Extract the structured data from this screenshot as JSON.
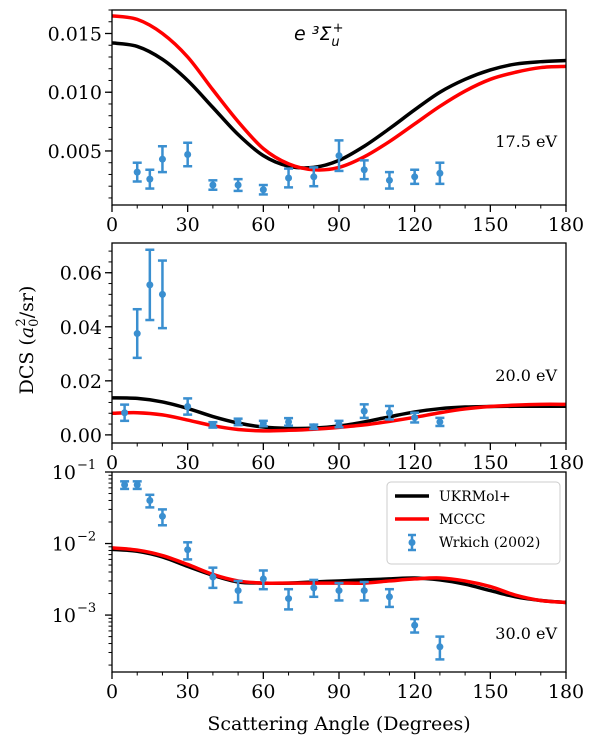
{
  "figure": {
    "ylabel": "DCS (",
    "ylabel_math": "a",
    "ylabel_sub": "0",
    "ylabel_sup": "2",
    "ylabel_tail": "/sr)",
    "xlabel": "Scattering Angle (Degrees)",
    "state_title": "e ³Σ",
    "state_title_sub": "u",
    "state_title_sup": "+"
  },
  "legend": {
    "items": [
      {
        "label": "UKRMol+",
        "color": "#000000",
        "kind": "line"
      },
      {
        "label": "MCCC",
        "color": "#ff0000",
        "kind": "line"
      },
      {
        "label": "Wrkich (2002)",
        "color": "#3a8fd0",
        "kind": "errorbar"
      }
    ]
  },
  "chart_data": [
    {
      "type": "line",
      "energy_label": "17.5 eV",
      "xlim": [
        0,
        180
      ],
      "ylim": [
        0.0004,
        0.017
      ],
      "yscale": "linear",
      "xticks": [
        0,
        30,
        60,
        90,
        120,
        150,
        180
      ],
      "yticks": [
        0.005,
        0.01,
        0.015
      ],
      "ytick_labels": [
        "0.005",
        "0.010",
        "0.015"
      ],
      "series": [
        {
          "name": "UKRMol+",
          "color": "#000000",
          "x": [
            0,
            10,
            20,
            30,
            40,
            50,
            60,
            70,
            80,
            90,
            100,
            110,
            120,
            130,
            140,
            150,
            160,
            170,
            180
          ],
          "y": [
            0.0142,
            0.0139,
            0.0128,
            0.011,
            0.0087,
            0.0064,
            0.0046,
            0.0037,
            0.0036,
            0.0042,
            0.0054,
            0.0069,
            0.0085,
            0.01,
            0.0111,
            0.0119,
            0.0124,
            0.0126,
            0.0127
          ]
        },
        {
          "name": "MCCC",
          "color": "#ff0000",
          "x": [
            0,
            10,
            20,
            30,
            40,
            50,
            60,
            70,
            80,
            90,
            100,
            110,
            120,
            130,
            140,
            150,
            160,
            170,
            180
          ],
          "y": [
            0.0165,
            0.0162,
            0.015,
            0.013,
            0.0102,
            0.0075,
            0.0052,
            0.0039,
            0.0034,
            0.0036,
            0.0045,
            0.0058,
            0.0073,
            0.0088,
            0.0101,
            0.0111,
            0.0117,
            0.0121,
            0.0122
          ]
        },
        {
          "name": "Wrkich (2002)",
          "color": "#3a8fd0",
          "errorbars": true,
          "x": [
            10,
            15,
            20,
            30,
            40,
            50,
            60,
            70,
            80,
            90,
            100,
            110,
            120,
            130
          ],
          "y": [
            0.0032,
            0.0026,
            0.0043,
            0.0047,
            0.0021,
            0.0021,
            0.0017,
            0.0027,
            0.0028,
            0.0046,
            0.0034,
            0.0025,
            0.0028,
            0.0031
          ],
          "err": [
            0.0008,
            0.0008,
            0.0011,
            0.001,
            0.0004,
            0.0005,
            0.0004,
            0.0008,
            0.0008,
            0.0013,
            0.0008,
            0.0007,
            0.0006,
            0.0009
          ]
        }
      ]
    },
    {
      "type": "line",
      "energy_label": "20.0 eV",
      "xlim": [
        0,
        180
      ],
      "ylim": [
        -0.003,
        0.071
      ],
      "yscale": "linear",
      "xticks": [
        0,
        30,
        60,
        90,
        120,
        150,
        180
      ],
      "yticks": [
        0.0,
        0.02,
        0.04,
        0.06
      ],
      "ytick_labels": [
        "0.00",
        "0.02",
        "0.04",
        "0.06"
      ],
      "series": [
        {
          "name": "UKRMol+",
          "color": "#000000",
          "x": [
            0,
            10,
            20,
            30,
            40,
            50,
            60,
            70,
            80,
            90,
            100,
            110,
            120,
            130,
            140,
            150,
            160,
            170,
            180
          ],
          "y": [
            0.0137,
            0.0135,
            0.0122,
            0.0098,
            0.0068,
            0.0044,
            0.0029,
            0.0024,
            0.0025,
            0.0033,
            0.0048,
            0.0067,
            0.0085,
            0.0097,
            0.0103,
            0.0105,
            0.0106,
            0.0106,
            0.0106
          ]
        },
        {
          "name": "MCCC",
          "color": "#ff0000",
          "x": [
            0,
            10,
            20,
            30,
            40,
            50,
            60,
            70,
            80,
            90,
            100,
            110,
            120,
            130,
            140,
            150,
            160,
            170,
            180
          ],
          "y": [
            0.008,
            0.0082,
            0.0074,
            0.0055,
            0.0034,
            0.002,
            0.0015,
            0.0017,
            0.0021,
            0.0028,
            0.0037,
            0.005,
            0.0065,
            0.0082,
            0.0096,
            0.0105,
            0.011,
            0.0113,
            0.0113
          ]
        },
        {
          "name": "Wrkich (2002)",
          "color": "#3a8fd0",
          "errorbars": true,
          "x": [
            5,
            10,
            15,
            20,
            30,
            40,
            50,
            60,
            70,
            80,
            90,
            100,
            110,
            120,
            130
          ],
          "y": [
            0.0082,
            0.0375,
            0.0555,
            0.052,
            0.0105,
            0.0037,
            0.0048,
            0.0042,
            0.0048,
            0.003,
            0.004,
            0.0088,
            0.0082,
            0.0064,
            0.0048
          ],
          "err": [
            0.003,
            0.009,
            0.013,
            0.0125,
            0.003,
            0.001,
            0.0012,
            0.001,
            0.0014,
            0.0008,
            0.0012,
            0.0025,
            0.0025,
            0.0018,
            0.0015
          ]
        }
      ]
    },
    {
      "type": "line",
      "energy_label": "30.0 eV",
      "xlim": [
        0,
        180
      ],
      "ylim": [
        0.00016,
        0.1
      ],
      "yscale": "log",
      "xticks": [
        0,
        30,
        60,
        90,
        120,
        150,
        180
      ],
      "yticks": [
        0.001,
        0.01,
        0.1
      ],
      "ytick_labels": [
        {
          "base": "10",
          "exp": "−3"
        },
        {
          "base": "10",
          "exp": "−2"
        },
        {
          "base": "10",
          "exp": "−1"
        }
      ],
      "series": [
        {
          "name": "UKRMol+",
          "color": "#000000",
          "x": [
            0,
            10,
            20,
            30,
            40,
            50,
            60,
            70,
            80,
            90,
            100,
            110,
            120,
            130,
            140,
            150,
            160,
            170,
            180
          ],
          "y": [
            0.0083,
            0.0078,
            0.0065,
            0.0048,
            0.0036,
            0.0029,
            0.0028,
            0.0028,
            0.0029,
            0.003,
            0.0031,
            0.0032,
            0.0033,
            0.0031,
            0.0027,
            0.0022,
            0.0018,
            0.0016,
            0.0015
          ]
        },
        {
          "name": "MCCC",
          "color": "#ff0000",
          "x": [
            0,
            10,
            20,
            30,
            40,
            50,
            60,
            70,
            80,
            90,
            100,
            110,
            120,
            130,
            140,
            150,
            160,
            170,
            180
          ],
          "y": [
            0.0087,
            0.0081,
            0.0068,
            0.0051,
            0.0037,
            0.003,
            0.0028,
            0.0028,
            0.0028,
            0.0028,
            0.0028,
            0.003,
            0.0032,
            0.0033,
            0.003,
            0.0025,
            0.0019,
            0.0016,
            0.0015
          ]
        },
        {
          "name": "Wrkich (2002)",
          "color": "#3a8fd0",
          "errorbars": true,
          "x": [
            5,
            10,
            15,
            20,
            30,
            40,
            50,
            60,
            70,
            80,
            90,
            100,
            110,
            120,
            130
          ],
          "y": [
            0.066,
            0.066,
            0.04,
            0.024,
            0.0082,
            0.0034,
            0.0022,
            0.0032,
            0.0017,
            0.0024,
            0.0022,
            0.0022,
            0.0018,
            0.00072,
            0.00036
          ],
          "err_lo": [
            0.008,
            0.008,
            0.008,
            0.006,
            0.0022,
            0.001,
            0.0007,
            0.0009,
            0.0005,
            0.0006,
            0.0006,
            0.0006,
            0.0005,
            0.00015,
            0.00012
          ],
          "err_hi": [
            0.008,
            0.008,
            0.008,
            0.006,
            0.0022,
            0.0012,
            0.0008,
            0.001,
            0.0006,
            0.0007,
            0.0006,
            0.0007,
            0.0005,
            0.00016,
            0.00014
          ]
        }
      ]
    }
  ]
}
